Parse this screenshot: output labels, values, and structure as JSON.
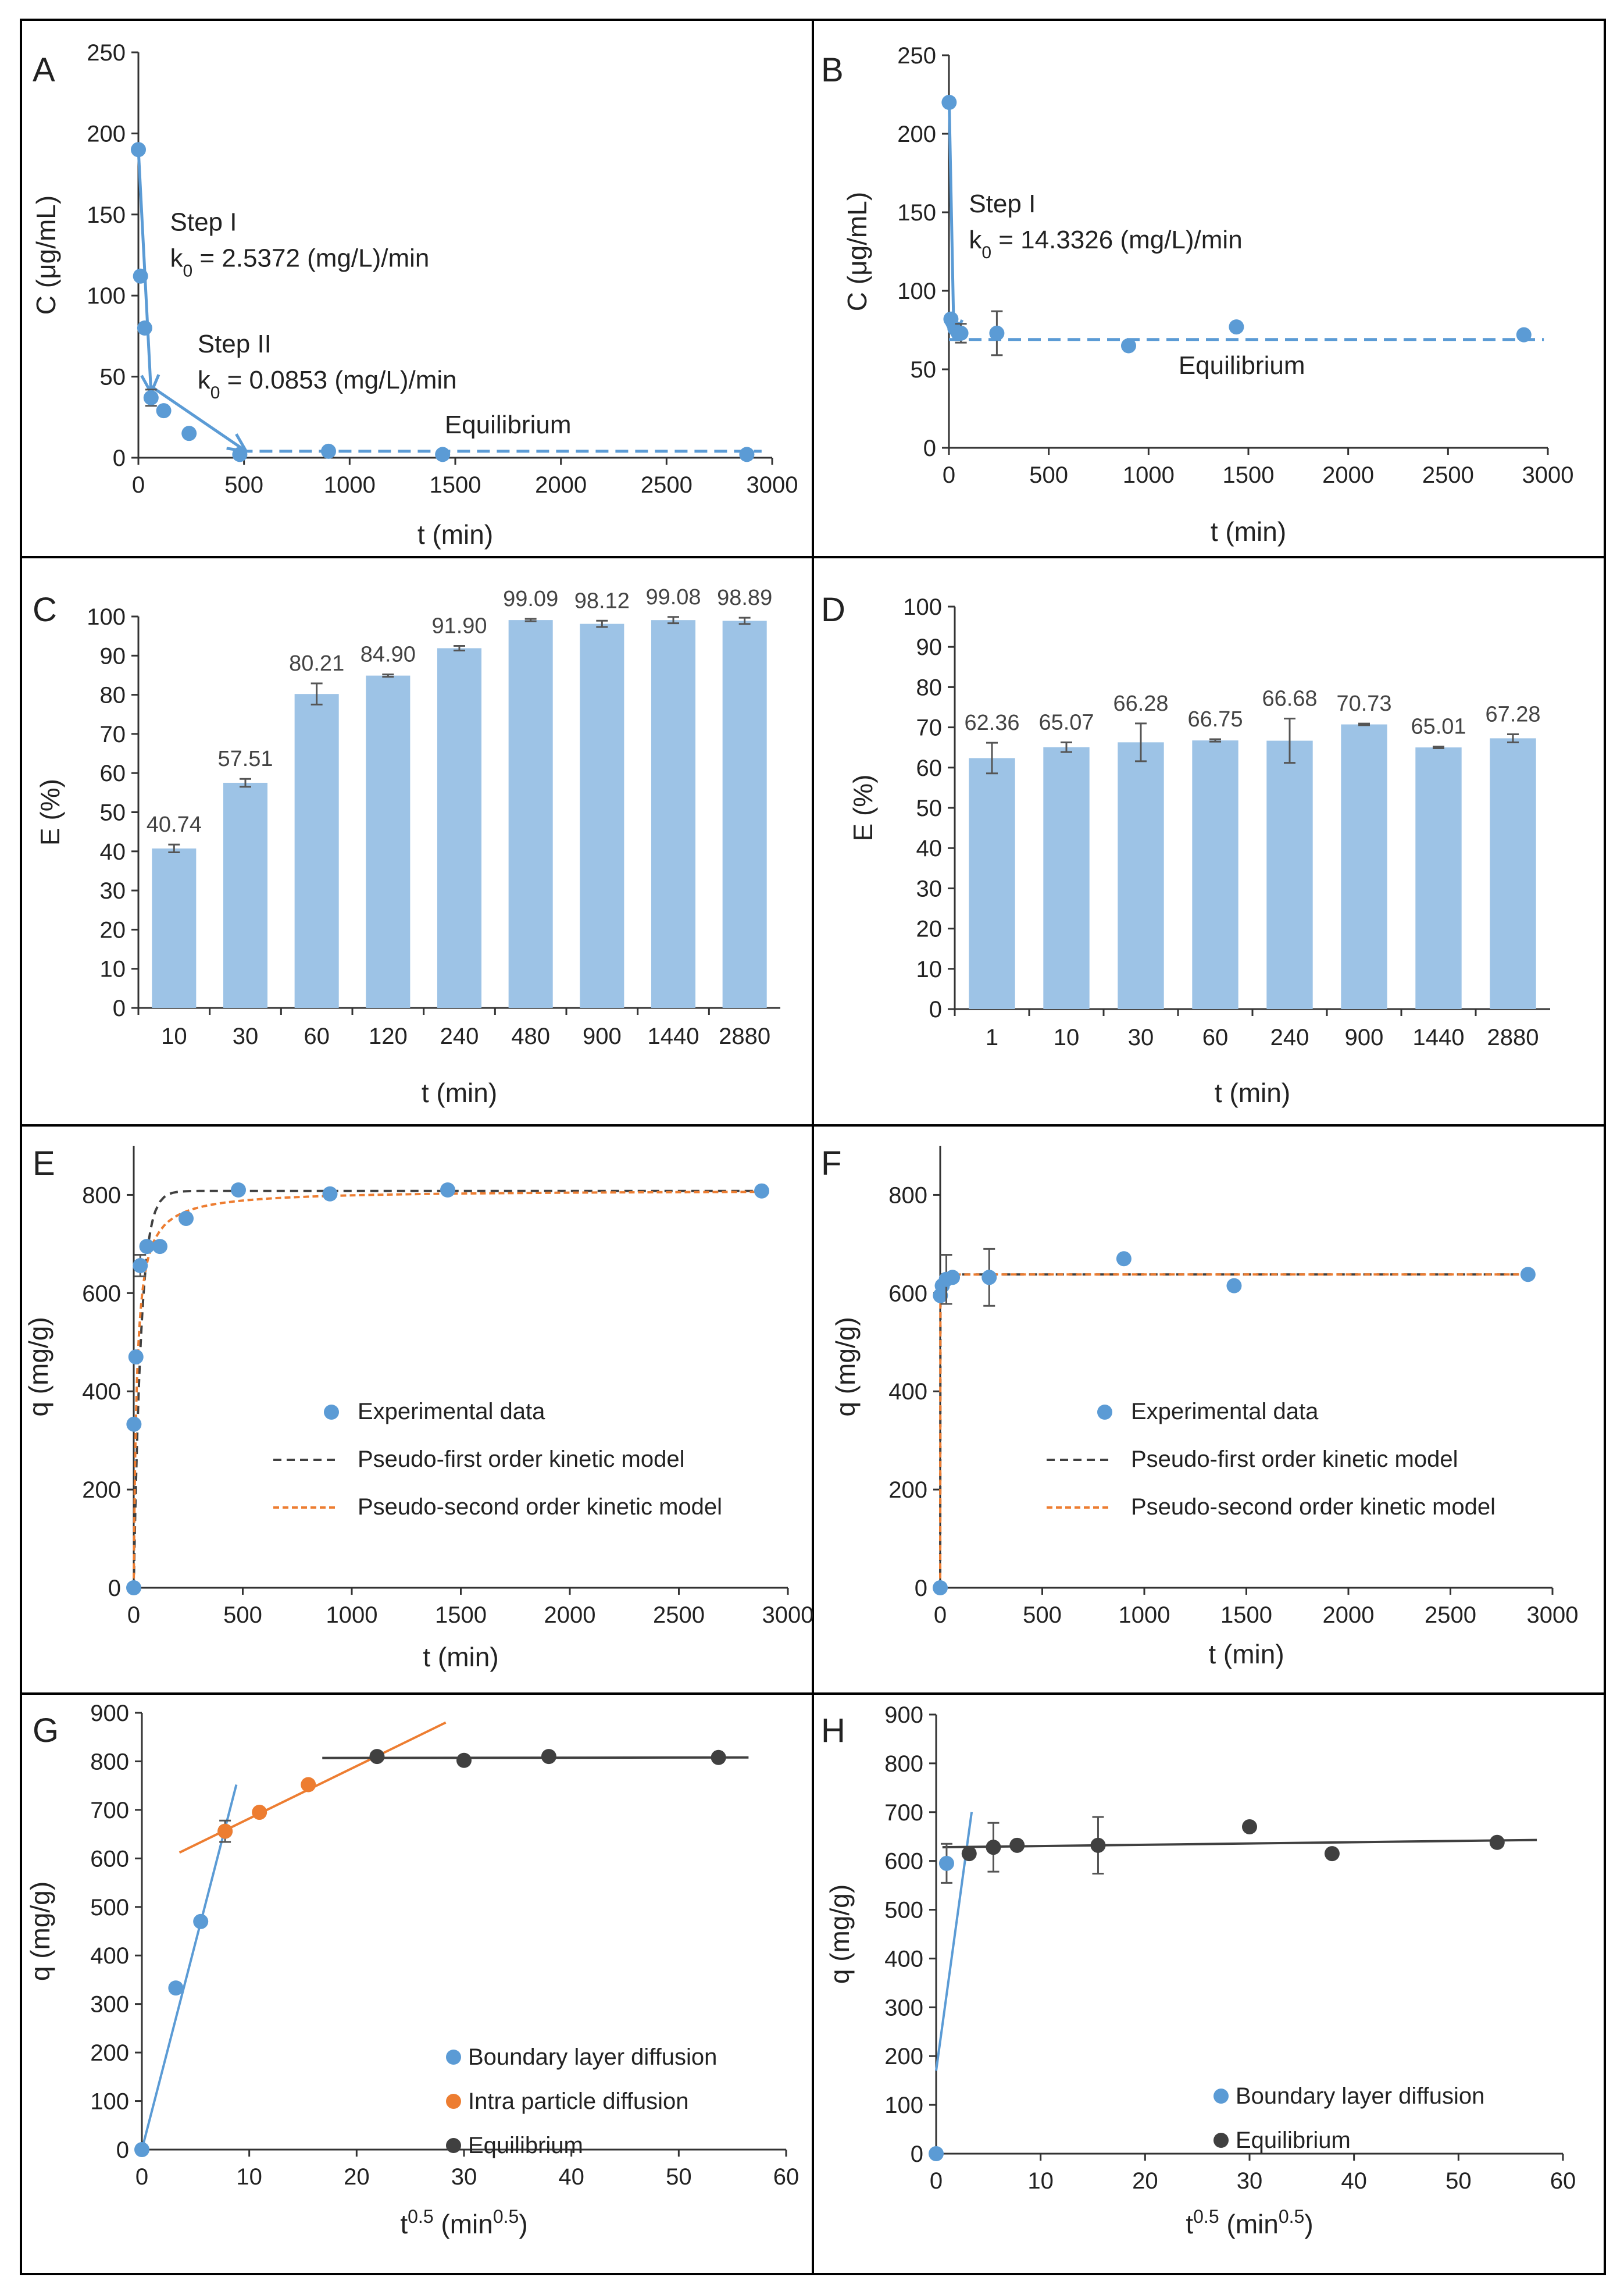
{
  "colors": {
    "point_blue": "#5b9bd5",
    "bar_blue": "#9dc3e6",
    "orange": "#ed7d31",
    "orange_dash": "#ed7d31",
    "dark": "#404040",
    "grey_dash": "#404040",
    "error": "#555555"
  },
  "chart_data": [
    {
      "panel": "A",
      "type": "scatter",
      "xlabel": "t (min)",
      "ylabel": "C (μg/mL)",
      "xlim": [
        0,
        3000
      ],
      "ylim": [
        0,
        250
      ],
      "xticks": [
        0,
        500,
        1000,
        1500,
        2000,
        2500,
        3000
      ],
      "yticks": [
        0,
        50,
        100,
        150,
        200,
        250
      ],
      "points": [
        {
          "x": 0,
          "y": 190
        },
        {
          "x": 10,
          "y": 112
        },
        {
          "x": 30,
          "y": 80
        },
        {
          "x": 60,
          "y": 37,
          "err": 5
        },
        {
          "x": 120,
          "y": 29
        },
        {
          "x": 240,
          "y": 15
        },
        {
          "x": 480,
          "y": 2
        },
        {
          "x": 900,
          "y": 4
        },
        {
          "x": 1440,
          "y": 2
        },
        {
          "x": 2880,
          "y": 2
        }
      ],
      "arrows": [
        {
          "from": [
            0,
            190
          ],
          "to": [
            60,
            40
          ]
        },
        {
          "from": [
            60,
            44
          ],
          "to": [
            510,
            4
          ]
        }
      ],
      "equilibrium_line": {
        "x": [
          480,
          2950
        ],
        "y": 4
      },
      "annotations": [
        {
          "lines": [
            "Step I",
            "k0 = 2.5372 (mg/L)/min"
          ],
          "at": [
            150,
            140
          ]
        },
        {
          "lines": [
            "Step II",
            "k0 = 0.0853 (mg/L)/min"
          ],
          "at": [
            280,
            65
          ]
        },
        {
          "lines": [
            "Equilibrium"
          ],
          "at": [
            1450,
            15
          ]
        }
      ]
    },
    {
      "panel": "B",
      "type": "scatter",
      "xlabel": "t (min)",
      "ylabel": "C (μg/mL)",
      "xlim": [
        0,
        3000
      ],
      "ylim": [
        0,
        250
      ],
      "xticks": [
        0,
        500,
        1000,
        1500,
        2000,
        2500,
        3000
      ],
      "yticks": [
        0,
        50,
        100,
        150,
        200,
        250
      ],
      "points": [
        {
          "x": 1,
          "y": 220
        },
        {
          "x": 10,
          "y": 82
        },
        {
          "x": 30,
          "y": 76
        },
        {
          "x": 60,
          "y": 73,
          "err": 6
        },
        {
          "x": 240,
          "y": 73,
          "err": 14
        },
        {
          "x": 900,
          "y": 65
        },
        {
          "x": 1440,
          "y": 77
        },
        {
          "x": 2880,
          "y": 72
        }
      ],
      "arrows": [
        {
          "from": [
            1,
            222
          ],
          "to": [
            25,
            70
          ]
        }
      ],
      "equilibrium_line": {
        "x": [
          0,
          2980
        ],
        "y": 69
      },
      "annotations": [
        {
          "lines": [
            "Step I",
            "k0 = 14.3326 (mg/L)/min"
          ],
          "at": [
            100,
            150
          ]
        },
        {
          "lines": [
            "Equilibrium"
          ],
          "at": [
            1150,
            47
          ]
        }
      ]
    },
    {
      "panel": "C",
      "type": "bar",
      "xlabel": "t (min)",
      "ylabel": "E (%)",
      "ylim": [
        0,
        100
      ],
      "yticks": [
        0,
        10,
        20,
        30,
        40,
        50,
        60,
        70,
        80,
        90,
        100
      ],
      "categories": [
        "10",
        "30",
        "60",
        "120",
        "240",
        "480",
        "900",
        "1440",
        "2880"
      ],
      "values": [
        40.74,
        57.51,
        80.21,
        84.9,
        91.9,
        99.09,
        98.12,
        99.08,
        98.89
      ],
      "labels": [
        "40.74",
        "57.51",
        "80.21",
        "84.90",
        "91.90",
        "99.09",
        "98.12",
        "99.08",
        "98.89"
      ],
      "errors": [
        1.0,
        1.0,
        2.7,
        0.3,
        0.6,
        0.3,
        0.8,
        0.8,
        0.8
      ]
    },
    {
      "panel": "D",
      "type": "bar",
      "xlabel": "t (min)",
      "ylabel": "E (%)",
      "ylim": [
        0,
        100
      ],
      "yticks": [
        0,
        10,
        20,
        30,
        40,
        50,
        60,
        70,
        80,
        90,
        100
      ],
      "categories": [
        "1",
        "10",
        "30",
        "60",
        "240",
        "900",
        "1440",
        "2880"
      ],
      "values": [
        62.36,
        65.07,
        66.28,
        66.75,
        66.68,
        70.73,
        65.01,
        67.28
      ],
      "labels": [
        "62.36",
        "65.07",
        "66.28",
        "66.75",
        "66.68",
        "70.73",
        "65.01",
        "67.28"
      ],
      "errors": [
        3.8,
        1.2,
        4.7,
        0.3,
        5.5,
        0.2,
        0.2,
        1.0
      ]
    },
    {
      "panel": "E",
      "type": "scatter",
      "xlabel": "t (min)",
      "ylabel": "q (mg/g)",
      "xlim": [
        0,
        3000
      ],
      "ylim": [
        0,
        900
      ],
      "xticks": [
        0,
        500,
        1000,
        1500,
        2000,
        2500,
        3000
      ],
      "yticks": [
        0,
        200,
        400,
        600,
        800
      ],
      "points": [
        {
          "x": 0,
          "y": 0
        },
        {
          "x": 1,
          "y": 333
        },
        {
          "x": 10,
          "y": 470
        },
        {
          "x": 30,
          "y": 656,
          "err": 22
        },
        {
          "x": 60,
          "y": 695
        },
        {
          "x": 120,
          "y": 695
        },
        {
          "x": 240,
          "y": 752
        },
        {
          "x": 480,
          "y": 810
        },
        {
          "x": 900,
          "y": 802
        },
        {
          "x": 1440,
          "y": 810
        },
        {
          "x": 2880,
          "y": 808
        }
      ],
      "models": {
        "pseudo_first": {
          "qe": 808,
          "k": 0.03
        },
        "pseudo_second": {
          "qe": 810,
          "k": 9e-05
        }
      },
      "legend": [
        "Experimental data",
        "Pseudo-first order kinetic model",
        "Pseudo-second order kinetic model"
      ]
    },
    {
      "panel": "F",
      "type": "scatter",
      "xlabel": "t (min)",
      "ylabel": "q (mg/g)",
      "xlim": [
        0,
        3000
      ],
      "ylim": [
        0,
        900
      ],
      "xticks": [
        0,
        500,
        1000,
        1500,
        2000,
        2500,
        3000
      ],
      "yticks": [
        0,
        200,
        400,
        600,
        800
      ],
      "points": [
        {
          "x": 0,
          "y": 0
        },
        {
          "x": 1,
          "y": 595
        },
        {
          "x": 10,
          "y": 615
        },
        {
          "x": 30,
          "y": 628,
          "err": 50
        },
        {
          "x": 60,
          "y": 632
        },
        {
          "x": 240,
          "y": 632,
          "err": 58
        },
        {
          "x": 900,
          "y": 670
        },
        {
          "x": 1440,
          "y": 615
        },
        {
          "x": 2880,
          "y": 638
        }
      ],
      "models": {
        "pseudo_first": {
          "qe": 638,
          "k": 2.0
        },
        "pseudo_second": {
          "qe": 638,
          "k": 0.05
        }
      },
      "legend": [
        "Experimental data",
        "Pseudo-first order kinetic model",
        "Pseudo-second order kinetic model"
      ]
    },
    {
      "panel": "G",
      "type": "scatter",
      "xlabel": "t",
      "xlabel_sup": "0.5",
      "xlabel_unit_open": " (min",
      "xlabel_unit_sup": "0.5",
      "xlabel_unit_close": ")",
      "ylabel": "q (mg/g)",
      "xlim": [
        0,
        60
      ],
      "ylim": [
        0,
        900
      ],
      "xticks": [
        0,
        10,
        20,
        30,
        40,
        50,
        60
      ],
      "yticks": [
        0,
        100,
        200,
        300,
        400,
        500,
        600,
        700,
        800,
        900
      ],
      "series": [
        {
          "name": "Boundary layer diffusion",
          "color": "#5b9bd5",
          "points": [
            {
              "x": 0,
              "y": 0
            },
            {
              "x": 3.16,
              "y": 333
            },
            {
              "x": 5.48,
              "y": 470
            },
            {
              "x": 7.75,
              "y": 656,
              "err": 22
            }
          ],
          "fit": {
            "x": [
              0,
              8.8
            ],
            "y": [
              0,
              752
            ]
          }
        },
        {
          "name": "Intra particle diffusion",
          "color": "#ed7d31",
          "points": [
            {
              "x": 7.75,
              "y": 656
            },
            {
              "x": 10.95,
              "y": 695
            },
            {
              "x": 15.5,
              "y": 752
            }
          ],
          "fit": {
            "x": [
              3.5,
              28.3
            ],
            "y": [
              612,
              880
            ]
          }
        },
        {
          "name": "Equilibrium",
          "color": "#404040",
          "points": [
            {
              "x": 21.9,
              "y": 810
            },
            {
              "x": 30,
              "y": 802
            },
            {
              "x": 37.9,
              "y": 810
            },
            {
              "x": 53.7,
              "y": 808
            }
          ],
          "fit": {
            "x": [
              16.8,
              56.5
            ],
            "y": [
              807,
              808
            ]
          }
        }
      ]
    },
    {
      "panel": "H",
      "type": "scatter",
      "xlabel": "t",
      "xlabel_sup": "0.5",
      "xlabel_unit_open": " (min",
      "xlabel_unit_sup": "0.5",
      "xlabel_unit_close": ")",
      "ylabel": "q (mg/g)",
      "xlim": [
        0,
        60
      ],
      "ylim": [
        0,
        900
      ],
      "xticks": [
        0,
        10,
        20,
        30,
        40,
        50,
        60
      ],
      "yticks": [
        0,
        100,
        200,
        300,
        400,
        500,
        600,
        700,
        800,
        900
      ],
      "series": [
        {
          "name": "Boundary layer diffusion",
          "color": "#5b9bd5",
          "points": [
            {
              "x": 0,
              "y": 0
            },
            {
              "x": 1,
              "y": 595,
              "err": 40
            }
          ],
          "fit": {
            "x": [
              0,
              3.4
            ],
            "y": [
              170,
              700
            ]
          }
        },
        {
          "name": "Equilibrium",
          "color": "#404040",
          "points": [
            {
              "x": 3.16,
              "y": 615
            },
            {
              "x": 5.48,
              "y": 628,
              "err": 50
            },
            {
              "x": 7.75,
              "y": 632
            },
            {
              "x": 15.5,
              "y": 632,
              "err": 58
            },
            {
              "x": 30,
              "y": 670
            },
            {
              "x": 37.9,
              "y": 615
            },
            {
              "x": 53.7,
              "y": 638
            }
          ],
          "fit": {
            "x": [
              0.6,
              57.5
            ],
            "y": [
              628,
              643
            ]
          }
        }
      ]
    }
  ]
}
